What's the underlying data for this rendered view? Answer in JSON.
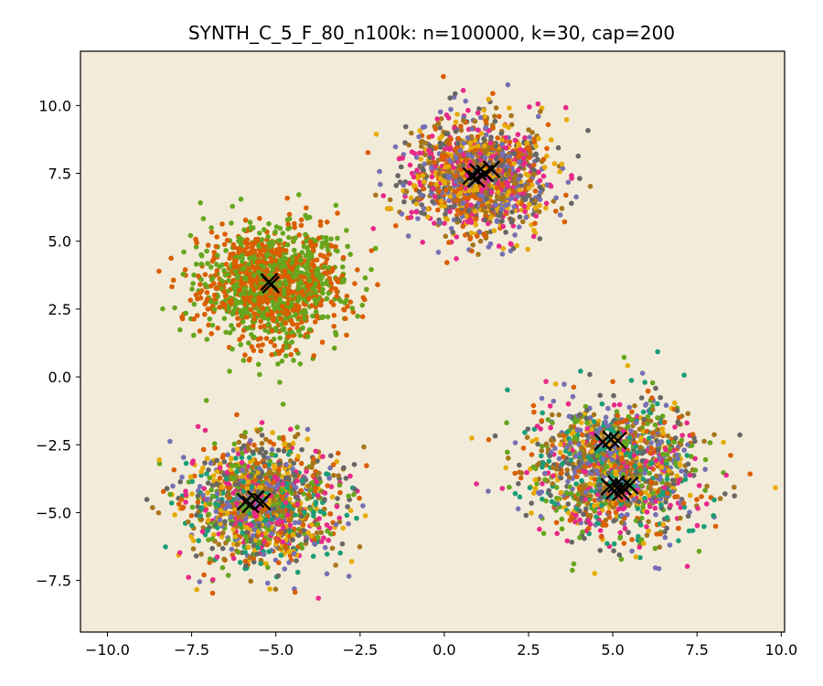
{
  "chart_data": {
    "type": "scatter",
    "title": "SYNTH_C_5_F_80_n100k: n=100000, k=30, cap=200",
    "xlabel": "",
    "ylabel": "",
    "xlim": [
      -10.8,
      10.1
    ],
    "ylim": [
      -9.4,
      12.0
    ],
    "x_ticks": [
      -10.0,
      -7.5,
      -5.0,
      -2.5,
      0.0,
      2.5,
      5.0,
      7.5,
      10.0
    ],
    "x_tick_labels": [
      "−10.0",
      "−7.5",
      "−5.0",
      "−2.5",
      "0.0",
      "2.5",
      "5.0",
      "7.5",
      "10.0"
    ],
    "y_ticks": [
      -7.5,
      -5.0,
      -2.5,
      0.0,
      2.5,
      5.0,
      7.5,
      10.0
    ],
    "y_tick_labels": [
      "−7.5",
      "−5.0",
      "−2.5",
      "0.0",
      "2.5",
      "5.0",
      "7.5",
      "10.0"
    ],
    "grid": false,
    "background_color": "#f3ebd9",
    "clusters": [
      {
        "center": [
          1.0,
          7.4
        ],
        "spread": 1.05,
        "colors": [
          "#d95f02",
          "#e7298a",
          "#a6761d",
          "#e6ab02",
          "#666666",
          "#7570b3"
        ]
      },
      {
        "center": [
          -5.1,
          3.4
        ],
        "spread": 1.05,
        "colors": [
          "#66a61e",
          "#d95f02"
        ]
      },
      {
        "center": [
          -5.4,
          -4.6
        ],
        "spread": 1.1,
        "colors": [
          "#e7298a",
          "#7570b3",
          "#66a61e",
          "#1b9e77",
          "#d95f02",
          "#e6ab02",
          "#666666",
          "#a6761d"
        ]
      },
      {
        "center": [
          5.1,
          -3.4
        ],
        "spread": 1.25,
        "colors": [
          "#1b9e77",
          "#e6ab02",
          "#7570b3",
          "#e7298a",
          "#66a61e",
          "#d95f02",
          "#a6761d",
          "#666666"
        ]
      }
    ],
    "centroid_marker": "x",
    "centroid_color": "#000000",
    "centroids": [
      [
        0.8,
        7.4
      ],
      [
        1.0,
        7.55
      ],
      [
        1.2,
        7.5
      ],
      [
        1.4,
        7.65
      ],
      [
        0.95,
        7.3
      ],
      [
        -5.2,
        3.5
      ],
      [
        -5.15,
        3.4
      ],
      [
        -5.9,
        -4.6
      ],
      [
        -5.6,
        -4.5
      ],
      [
        -5.4,
        -4.6
      ],
      [
        -5.75,
        -4.7
      ],
      [
        4.7,
        -2.4
      ],
      [
        4.95,
        -2.3
      ],
      [
        5.15,
        -2.35
      ],
      [
        4.9,
        -4.05
      ],
      [
        5.1,
        -3.95
      ],
      [
        5.3,
        -4.05
      ],
      [
        5.5,
        -4.0
      ],
      [
        5.05,
        -4.2
      ],
      [
        5.25,
        -4.25
      ]
    ]
  }
}
